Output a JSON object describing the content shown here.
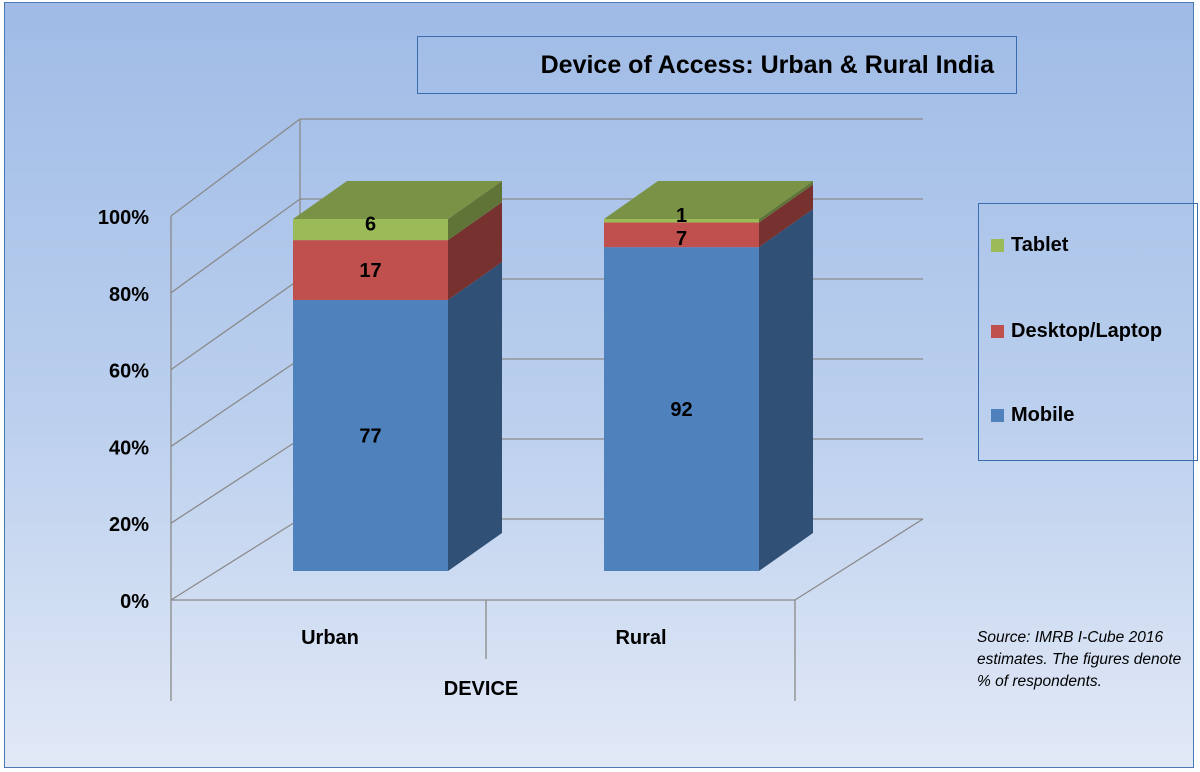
{
  "chart_data": {
    "type": "bar",
    "stacked": true,
    "three_d": true,
    "normalized_percent": true,
    "title": "Device of Access: Urban & Rural India",
    "xlabel": "DEVICE",
    "ylabel": "",
    "categories": [
      "Urban",
      "Rural"
    ],
    "series": [
      {
        "name": "Mobile",
        "values": [
          77,
          92
        ],
        "color": "#4f81bd"
      },
      {
        "name": "Desktop/Laptop",
        "values": [
          17,
          7
        ],
        "color": "#c0504d"
      },
      {
        "name": "Tablet",
        "values": [
          6,
          1
        ],
        "color": "#9bbb59"
      }
    ],
    "yticks": [
      "0%",
      "20%",
      "40%",
      "60%",
      "80%",
      "100%"
    ],
    "ylim": [
      0,
      100
    ],
    "legend_position": "right",
    "grid": true,
    "annotation": "Source: IMRB I-Cube 2016 estimates. The figures denote % of respondents."
  }
}
